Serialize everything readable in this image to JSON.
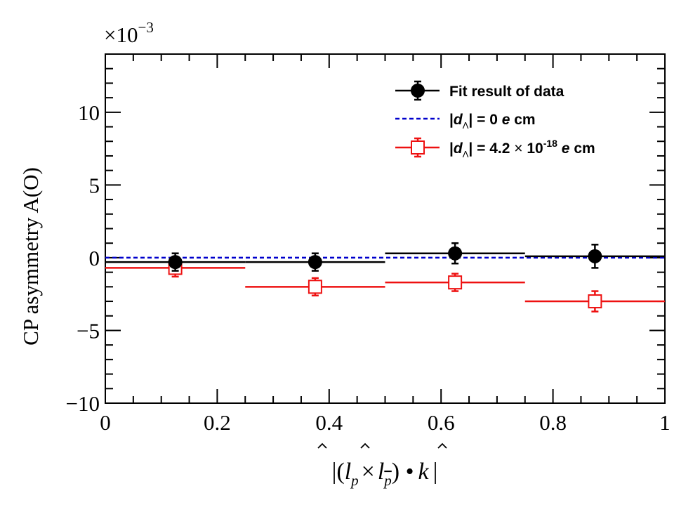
{
  "chart_data": {
    "type": "scatter",
    "title": "",
    "xlabel_parts": [
      "|(",
      "l",
      "p",
      "×",
      "l",
      "p",
      ") ",
      "•",
      "k",
      "|"
    ],
    "ylabel": "CP asymmetry A(O)",
    "y_exponent_label": "×10",
    "y_exponent_power": "−3",
    "xlim": [
      0,
      1
    ],
    "ylim": [
      -10,
      14
    ],
    "x_ticks": [
      0,
      0.2,
      0.4,
      0.6,
      0.8,
      1
    ],
    "x_tick_labels": [
      "0",
      "0.2",
      "0.4",
      "0.6",
      "0.8",
      "1"
    ],
    "y_ticks": [
      -10,
      -5,
      0,
      5,
      10
    ],
    "y_tick_labels": [
      "−10",
      "−5",
      "0",
      "5",
      "10"
    ],
    "grid": false,
    "legend_position": "top-right",
    "bins": [
      {
        "lo": 0.0,
        "hi": 0.25,
        "center": 0.125
      },
      {
        "lo": 0.25,
        "hi": 0.5,
        "center": 0.375
      },
      {
        "lo": 0.5,
        "hi": 0.75,
        "center": 0.625
      },
      {
        "lo": 0.75,
        "hi": 1.0,
        "center": 0.875
      }
    ],
    "series": [
      {
        "name": "Fit result of data",
        "legend_label": "Fit result of data",
        "marker": "filled-circle",
        "color": "#000000",
        "values": [
          -0.3,
          -0.3,
          0.3,
          0.1
        ],
        "errors": [
          0.6,
          0.6,
          0.7,
          0.8
        ]
      },
      {
        "name": "|dΛ| = 0 e cm",
        "legend_parts": [
          "|",
          "d",
          "Λ",
          "| = 0  ",
          "e",
          " cm"
        ],
        "marker": "dashed-line",
        "color": "#0000cc",
        "value": 0.0
      },
      {
        "name": "|dΛ| = 4.2 × 10^-18 e cm",
        "legend_parts": [
          "|",
          "d",
          "Λ",
          "| = 4.2 ",
          "×",
          " 10",
          "-18",
          "  ",
          "e",
          " cm"
        ],
        "marker": "open-square",
        "color": "#ee1111",
        "values": [
          -0.7,
          -2.0,
          -1.7,
          -3.0
        ],
        "errors": [
          0.6,
          0.6,
          0.6,
          0.7
        ]
      }
    ]
  }
}
